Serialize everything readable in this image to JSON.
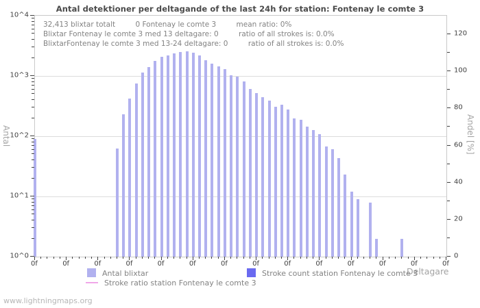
{
  "watermark": "www.lightningmaps.org",
  "annotation": {
    "line1": [
      "32,413 blixtar totalt",
      "0 Fontenay le comte 3",
      "mean ratio: 0%"
    ],
    "line2": [
      "Blixtar Fontenay le comte 3 med 13 deltagare: 0",
      "ratio of all strokes is: 0.0%"
    ],
    "line3": [
      "BlixtarFontenay le comte 3 med 13-24 deltagare: 0",
      "ratio of all strokes is: 0.0%"
    ]
  },
  "chart_data": {
    "type": "bar",
    "title": "Antal detektioner per deltagande of the last 24h for station: Fontenay le comte 3",
    "xlabel": "Deltagare",
    "ylabel_left": "Antal",
    "ylabel_right": "Andel [%]",
    "y_scale_left": "log",
    "ylim_left": [
      1,
      10000
    ],
    "ylim_right": [
      0,
      130
    ],
    "grid": "horizontal",
    "legend_position": "bottom",
    "left_tick_labels": [
      "10^0",
      "10^1",
      "10^2",
      "10^3",
      "10^4"
    ],
    "right_ticks": [
      0,
      20,
      40,
      60,
      80,
      100,
      120
    ],
    "x_axis": {
      "tick_count": 66,
      "label_every": 5,
      "label_text": "0f"
    },
    "series": [
      {
        "name": "Antal blixtar",
        "color": "#b1b1ef",
        "kind": "bar",
        "points": [
          [
            0,
            90
          ],
          [
            13,
            62
          ],
          [
            14,
            230
          ],
          [
            15,
            420
          ],
          [
            16,
            750
          ],
          [
            17,
            1140
          ],
          [
            18,
            1410
          ],
          [
            19,
            1790
          ],
          [
            20,
            2100
          ],
          [
            21,
            2210
          ],
          [
            22,
            2390
          ],
          [
            23,
            2520
          ],
          [
            24,
            2590
          ],
          [
            25,
            2460
          ],
          [
            26,
            2210
          ],
          [
            27,
            1840
          ],
          [
            28,
            1610
          ],
          [
            29,
            1450
          ],
          [
            30,
            1300
          ],
          [
            31,
            1040
          ],
          [
            32,
            970
          ],
          [
            33,
            810
          ],
          [
            34,
            610
          ],
          [
            35,
            525
          ],
          [
            36,
            440
          ],
          [
            37,
            390
          ],
          [
            38,
            310
          ],
          [
            39,
            330
          ],
          [
            40,
            280
          ],
          [
            41,
            197
          ],
          [
            42,
            185
          ],
          [
            43,
            145
          ],
          [
            44,
            127
          ],
          [
            45,
            107
          ],
          [
            46,
            67
          ],
          [
            47,
            61
          ],
          [
            48,
            43
          ],
          [
            49,
            23
          ],
          [
            50,
            12
          ],
          [
            51,
            9
          ],
          [
            53,
            8
          ],
          [
            54,
            2
          ],
          [
            58,
            2
          ]
        ]
      },
      {
        "name": "Stroke count station Fontenay le comte 3",
        "color": "#6a6af0",
        "kind": "bar",
        "points": []
      },
      {
        "name": "Stroke ratio station Fontenay le comte 3",
        "color": "#f0a6e8",
        "kind": "line",
        "points": []
      }
    ]
  }
}
